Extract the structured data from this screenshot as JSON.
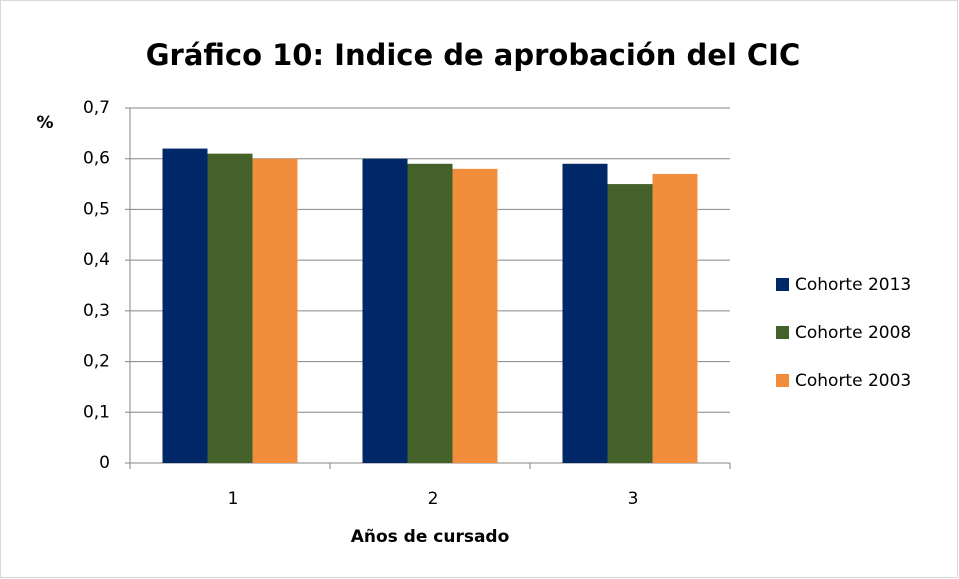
{
  "chart_data": {
    "type": "bar",
    "title": "Gráfico 10: Indice de aprobación del CIC",
    "y_label": "%",
    "x_label": "Años de cursado",
    "categories": [
      "1",
      "2",
      "3"
    ],
    "series": [
      {
        "name": "Cohorte 2013",
        "color": "#002868",
        "values": [
          0.62,
          0.6,
          0.59
        ]
      },
      {
        "name": "Cohorte 2008",
        "color": "#436129",
        "values": [
          0.61,
          0.59,
          0.55
        ]
      },
      {
        "name": "Cohorte 2003",
        "color": "#f28d3c",
        "values": [
          0.6,
          0.58,
          0.57
        ]
      }
    ],
    "ylim": [
      0,
      0.7
    ],
    "yticks": [
      0,
      {
        "value": 0.1,
        "label": "0,1"
      },
      {
        "value": 0.2,
        "label": "0,2"
      },
      {
        "value": 0.3,
        "label": "0,3"
      },
      {
        "value": 0.4,
        "label": "0,4"
      },
      {
        "value": 0.5,
        "label": "0,5"
      },
      {
        "value": 0.6,
        "label": "0,6"
      },
      {
        "value": 0.7,
        "label": "0,7"
      }
    ],
    "grid": true,
    "legend": "right"
  }
}
